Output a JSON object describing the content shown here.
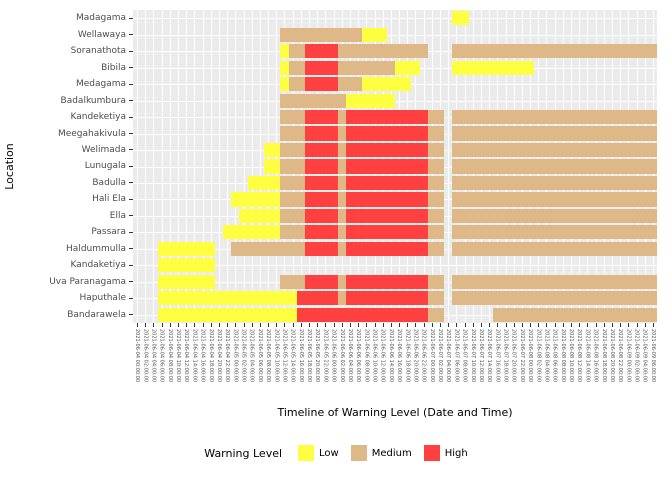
{
  "chart_data": {
    "type": "heatmap",
    "title": "",
    "xlabel": "Timeline of Warning Level (Date and Time)",
    "ylabel": "Location",
    "legend_title": "Warning Level",
    "legend_position": "bottom",
    "panel_bg": "#EBEBEB",
    "grid_color": "#FFFFFF",
    "tick_color": "#333333",
    "axis_text_color": "#4D4D4D",
    "levels": [
      {
        "code": "L",
        "name": "Low",
        "color": "#FFFF42"
      },
      {
        "code": "M",
        "name": "Medium",
        "color": "#DEB887"
      },
      {
        "code": "H",
        "name": "High",
        "color": "#FF4040"
      }
    ],
    "locations": [
      "Madagama",
      "Wellawaya",
      "Soranathota",
      "Bibila",
      "Medagama",
      "Badalkumbura",
      "Kandeketiya",
      "Meegahakivula",
      "Welimada",
      "Lunugala",
      "Badulla",
      "Hali Ela",
      "Ella",
      "Passara",
      "Haldummulla",
      "Kandaketiya",
      "Uva Paranagama",
      "Haputhale",
      "Bandarawela"
    ],
    "x": [
      "2021-06-04 00:00:00",
      "2021-06-04 02:00:00",
      "2021-06-04 04:00:00",
      "2021-06-04 06:00:00",
      "2021-06-04 08:00:00",
      "2021-06-04 10:00:00",
      "2021-06-04 12:00:00",
      "2021-06-04 14:00:00",
      "2021-06-04 16:00:00",
      "2021-06-04 18:00:00",
      "2021-06-04 20:00:00",
      "2021-06-04 22:00:00",
      "2021-06-05 00:00:00",
      "2021-06-05 02:00:00",
      "2021-06-05 04:00:00",
      "2021-06-05 06:00:00",
      "2021-06-05 08:00:00",
      "2021-06-05 10:00:00",
      "2021-06-05 12:00:00",
      "2021-06-05 14:00:00",
      "2021-06-05 16:00:00",
      "2021-06-05 18:00:00",
      "2021-06-05 20:00:00",
      "2021-06-05 22:00:00",
      "2021-06-06 00:00:00",
      "2021-06-06 02:00:00",
      "2021-06-06 04:00:00",
      "2021-06-06 06:00:00",
      "2021-06-06 08:00:00",
      "2021-06-06 10:00:00",
      "2021-06-06 12:00:00",
      "2021-06-06 14:00:00",
      "2021-06-06 16:00:00",
      "2021-06-06 18:00:00",
      "2021-06-06 20:00:00",
      "2021-06-06 22:00:00",
      "2021-06-07 00:00:00",
      "2021-06-07 02:00:00",
      "2021-06-07 04:00:00",
      "2021-06-07 06:00:00",
      "2021-06-07 08:00:00",
      "2021-06-07 10:00:00",
      "2021-06-07 12:00:00",
      "2021-06-07 14:00:00",
      "2021-06-07 16:00:00",
      "2021-06-07 18:00:00",
      "2021-06-07 20:00:00",
      "2021-06-07 22:00:00",
      "2021-06-08 00:00:00",
      "2021-06-08 02:00:00",
      "2021-06-08 04:00:00",
      "2021-06-08 06:00:00",
      "2021-06-08 08:00:00",
      "2021-06-08 10:00:00",
      "2021-06-08 12:00:00",
      "2021-06-08 14:00:00",
      "2021-06-08 16:00:00",
      "2021-06-08 18:00:00",
      "2021-06-08 20:00:00",
      "2021-06-08 22:00:00",
      "2021-06-09 00:00:00",
      "2021-06-09 02:00:00",
      "2021-06-09 04:00:00",
      "2021-06-09 06:00:00"
    ],
    "rows": [
      ".......................................LL.......................",
      "..................MMMMMMMMMMLLL.................................",
      "..................LMMHHHHMMMMMMMMMMM...MMMMMMMMMMMMMMMMMMMMMMMMM",
      "..................LMMHHHHMMMMMMMLLL....LLLLLLLLLL...............",
      "..................LMMHHHHMMMLLLLLL..............................",
      "..................MMMMMMMMLLLLLL................................",
      "..................MMMHHHHMHHHHHHHHHHMM.MMMMMMMMMMMMMMMMMMMMMMMMM",
      "..................MMMHHHHMHHHHHHHHHHMM.MMMMMMMMMMMMMMMMMMMMMMMMM",
      "................LLMMMHHHHMHHHHHHHHHHMM.MMMMMMMMMMMMMMMMMMMMMMMMM",
      "................LLMMMHHHHMHHHHHHHHHHMM.MMMMMMMMMMMMMMMMMMMMMMMMM",
      "..............LLLLMMMHHHHMHHHHHHHHHHMM.MMMMMMMMMMMMMMMMMMMMMMMMM",
      "............LLLLLLMMMHHHHMHHHHHHHHHHMM.MMMMMMMMMMMMMMMMMMMMMMMMM",
      ".............LLLLLMMMHHHHMHHHHHHHHHHMM.MMMMMMMMMMMMMMMMMMMMMMMMM",
      "...........LLLLLLLMMMHHHHMHHHHHHHHHHMM.MMMMMMMMMMMMMMMMMMMMMMMMM",
      "...LLLLLLL..MMMMMMMMMHHHHMHHHHHHHHHHMM.MMMMMMMMMMMMMMMMMMMMMMMMM",
      "...LLLLLLL......................................................",
      "...LLLLLLL........MMMHHHHMHHHHHHHHHHMM.MMMMMMMMMMMMMMMMMMMMMMMMM",
      "...LLLLLLLLLLLLLLLLLHHHHHMHHHHHHHHHHMM.MMMMMMMMMMMMMMMMMMMMMMMMM",
      "...LLLLLLLLLLLLLLLLLHHHHHHHHHHHHHHHHMM......MMMMMMMMMMMMMMMMMMMM"
    ]
  }
}
